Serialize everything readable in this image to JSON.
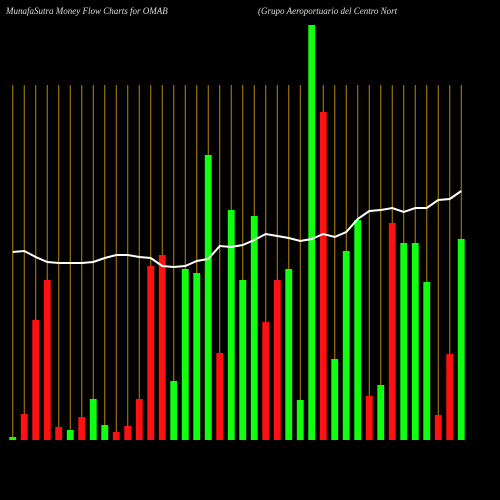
{
  "chart_data": {
    "type": "bar",
    "title": "MunafaSutra  Money Flow  Charts for OMAB",
    "subtitle": "(Grupo  Aeroportuario  del Centro  Nort",
    "categories": [
      null,
      null,
      null,
      null,
      null,
      null,
      null,
      null,
      null,
      null,
      null,
      null,
      null,
      null,
      null,
      null,
      null,
      null,
      null,
      null,
      null,
      null,
      null,
      null,
      null,
      null,
      null,
      null,
      null,
      null,
      null,
      null,
      null,
      null,
      null,
      null,
      null,
      null,
      null,
      null
    ],
    "values": [
      3,
      26,
      120,
      160,
      13,
      10,
      23,
      41,
      15,
      8,
      14,
      41,
      174,
      185,
      59,
      171,
      167,
      285,
      87,
      230,
      160,
      224,
      118,
      160,
      171,
      40,
      415,
      328,
      81,
      189,
      220,
      44,
      55,
      217,
      197,
      197,
      158,
      25,
      86,
      201
    ],
    "bar_colors": [
      "#1f1",
      "#f11",
      "#f11",
      "#f11",
      "#f11",
      "#1f1",
      "#f11",
      "#1f1",
      "#1f1",
      "#f11",
      "#f11",
      "#f11",
      "#f11",
      "#f11",
      "#1f1",
      "#1f1",
      "#1f1",
      "#1f1",
      "#f11",
      "#1f1",
      "#1f1",
      "#1f1",
      "#f11",
      "#f11",
      "#1f1",
      "#1f1",
      "#1f1",
      "#f11",
      "#1f1",
      "#1f1",
      "#1f1",
      "#f11",
      "#1f1",
      "#f11",
      "#1f1",
      "#1f1",
      "#1f1",
      "#f11",
      "#f11",
      "#1f1"
    ],
    "line": {
      "color": "#ffffff",
      "values": [
        188,
        189,
        183,
        178,
        177,
        177,
        177,
        178,
        182,
        185,
        185,
        183,
        182,
        174,
        173,
        174,
        179,
        181,
        194,
        193,
        195,
        200,
        206,
        204,
        202,
        199,
        201,
        206,
        203,
        208,
        221,
        229,
        230,
        232,
        228,
        232,
        232,
        240,
        241,
        249
      ]
    },
    "ylim": [
      0,
      420
    ],
    "gridline_color": "#b8860b"
  }
}
